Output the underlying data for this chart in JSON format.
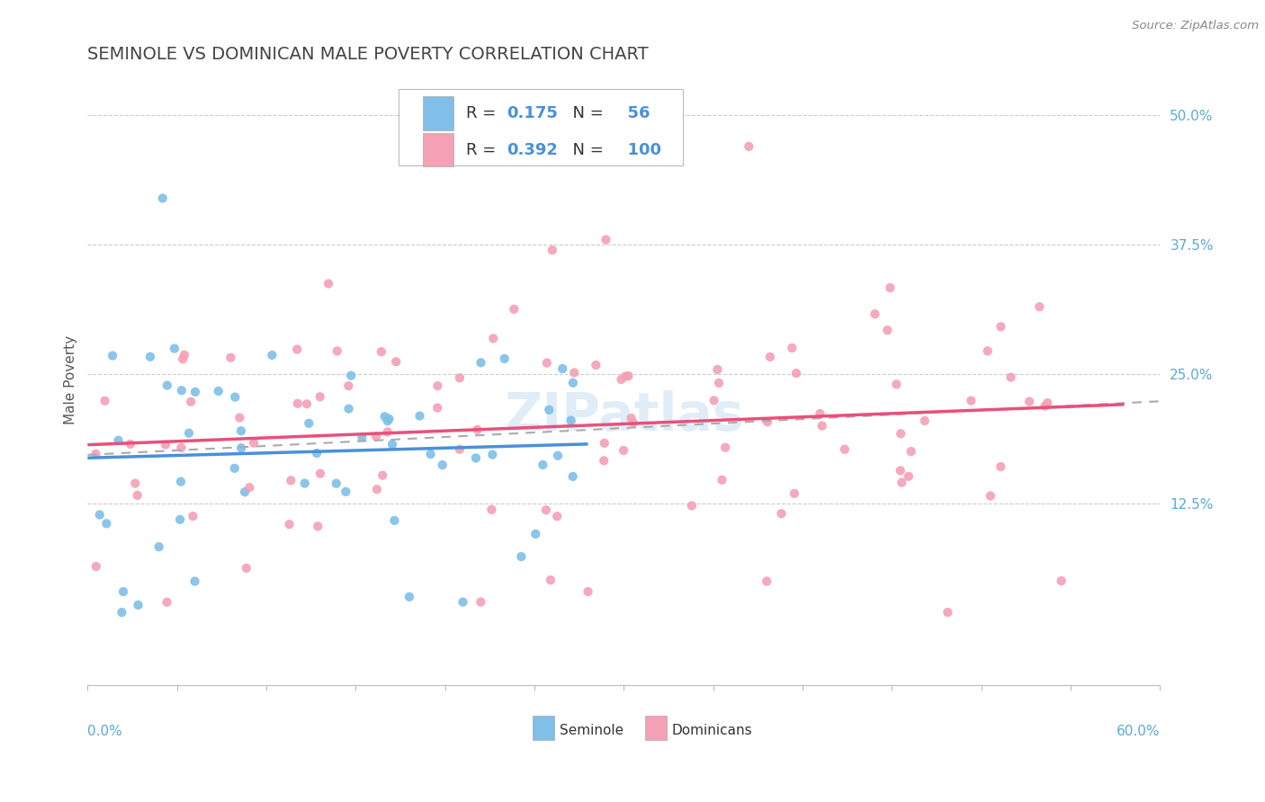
{
  "title": "SEMINOLE VS DOMINICAN MALE POVERTY CORRELATION CHART",
  "source_text": "Source: ZipAtlas.com",
  "ylabel": "Male Poverty",
  "seminole_R": 0.175,
  "seminole_N": 56,
  "dominican_R": 0.392,
  "dominican_N": 100,
  "seminole_color": "#7fbfe8",
  "dominican_color": "#f4a0b5",
  "seminole_line_color": "#4a90d9",
  "dominican_line_color": "#e8507a",
  "dashed_line_color": "#aaaaaa",
  "legend_label_seminole": "Seminole",
  "legend_label_dominican": "Dominicans",
  "background_color": "#ffffff",
  "grid_color": "#cccccc",
  "xlim": [
    0.0,
    0.6
  ],
  "ylim": [
    -0.05,
    0.54
  ],
  "ytick_vals": [
    0.125,
    0.25,
    0.375,
    0.5
  ],
  "ytick_labels": [
    "12.5%",
    "25.0%",
    "37.5%",
    "50.0%"
  ],
  "watermark": "ZIPatlas",
  "watermark_color": "#c8dff0"
}
